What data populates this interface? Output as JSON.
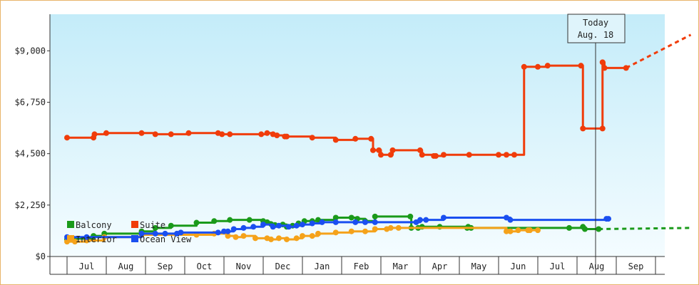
{
  "chart_data": {
    "type": "line",
    "title": "",
    "xlabel": "",
    "ylabel": "",
    "x_tick_labels": [
      "Jul",
      "Aug",
      "Sep",
      "Oct",
      "Nov",
      "Dec",
      "Jan",
      "Feb",
      "Mar",
      "Apr",
      "May",
      "Jun",
      "Jul",
      "Aug",
      "Sep"
    ],
    "y_ticks": [
      0,
      2250,
      4500,
      6750,
      9000
    ],
    "y_tick_labels": [
      "$0",
      "$2,250",
      "$4,500",
      "$6,750",
      "$9,000"
    ],
    "ylim": [
      0,
      10600
    ],
    "grid": false,
    "legend": "inside-bottom-left",
    "today_marker": {
      "line1": "Today",
      "line2": "Aug. 18"
    },
    "series": [
      {
        "name": "Balcony",
        "color": "#1a9a1a",
        "points": [
          [
            0,
            750
          ],
          [
            0.3,
            780
          ],
          [
            1,
            780
          ],
          [
            1.35,
            900
          ],
          [
            1.9,
            1000
          ],
          [
            3.8,
            1100
          ],
          [
            4.5,
            1250
          ],
          [
            5.3,
            1350
          ],
          [
            6.6,
            1480
          ],
          [
            7.5,
            1550
          ],
          [
            8.3,
            1600
          ],
          [
            9.3,
            1600
          ],
          [
            10.0,
            1550
          ],
          [
            10.2,
            1500
          ],
          [
            10.4,
            1420
          ],
          [
            10.6,
            1380
          ],
          [
            11.0,
            1400
          ],
          [
            11.2,
            1300
          ],
          [
            11.5,
            1350
          ],
          [
            11.8,
            1450
          ],
          [
            12.1,
            1550
          ],
          [
            12.5,
            1550
          ],
          [
            12.8,
            1600
          ],
          [
            13.7,
            1700
          ],
          [
            14.5,
            1700
          ],
          [
            14.8,
            1650
          ],
          [
            15.2,
            1550
          ],
          [
            15.7,
            1750
          ],
          [
            17.5,
            1750
          ],
          [
            17.55,
            1250
          ],
          [
            17.9,
            1250
          ],
          [
            18.1,
            1300
          ],
          [
            19.0,
            1300
          ],
          [
            20.4,
            1250
          ],
          [
            20.45,
            1300
          ],
          [
            20.6,
            1250
          ],
          [
            25.6,
            1250
          ],
          [
            26.3,
            1300
          ],
          [
            26.4,
            1200
          ],
          [
            27.1,
            1200
          ]
        ],
        "forecast": [
          [
            27.1,
            1200
          ],
          [
            31.8,
            1250
          ]
        ]
      },
      {
        "name": "Suite",
        "color": "#f03c0a",
        "points": [
          [
            0,
            5200
          ],
          [
            1.35,
            5200
          ],
          [
            1.4,
            5350
          ],
          [
            2.0,
            5400
          ],
          [
            3.8,
            5400
          ],
          [
            4.5,
            5350
          ],
          [
            5.3,
            5350
          ],
          [
            6.2,
            5400
          ],
          [
            7.7,
            5400
          ],
          [
            7.9,
            5350
          ],
          [
            8.3,
            5350
          ],
          [
            9.9,
            5350
          ],
          [
            10.2,
            5400
          ],
          [
            10.5,
            5350
          ],
          [
            10.7,
            5300
          ],
          [
            11.1,
            5250
          ],
          [
            11.2,
            5250
          ],
          [
            12.5,
            5200
          ],
          [
            13.7,
            5100
          ],
          [
            14.7,
            5150
          ],
          [
            15.5,
            5150
          ],
          [
            15.6,
            4650
          ],
          [
            15.9,
            4650
          ],
          [
            16.0,
            4450
          ],
          [
            16.5,
            4450
          ],
          [
            16.6,
            4650
          ],
          [
            18.0,
            4650
          ],
          [
            18.1,
            4450
          ],
          [
            18.7,
            4400
          ],
          [
            18.8,
            4400
          ],
          [
            19.2,
            4450
          ],
          [
            20.5,
            4450
          ],
          [
            22.0,
            4450
          ],
          [
            22.4,
            4450
          ],
          [
            22.8,
            4450
          ],
          [
            23.3,
            8300
          ],
          [
            24.0,
            8300
          ],
          [
            24.5,
            8350
          ],
          [
            26.2,
            8350
          ],
          [
            26.3,
            5600
          ],
          [
            27.3,
            5600
          ],
          [
            27.3,
            8500
          ],
          [
            27.4,
            8250
          ],
          [
            28.5,
            8250
          ]
        ],
        "forecast": [
          [
            28.5,
            8250
          ],
          [
            31.8,
            9700
          ]
        ]
      },
      {
        "name": "Interior",
        "color": "#f5a21a",
        "points": [
          [
            0,
            650
          ],
          [
            0.4,
            650
          ],
          [
            1.0,
            700
          ],
          [
            1.9,
            850
          ],
          [
            3.8,
            950
          ],
          [
            6.6,
            950
          ],
          [
            7.5,
            1000
          ],
          [
            8.2,
            900
          ],
          [
            8.6,
            850
          ],
          [
            9.0,
            900
          ],
          [
            9.6,
            800
          ],
          [
            10.2,
            800
          ],
          [
            10.4,
            750
          ],
          [
            10.8,
            800
          ],
          [
            11.2,
            750
          ],
          [
            11.7,
            800
          ],
          [
            12.0,
            900
          ],
          [
            12.5,
            900
          ],
          [
            12.8,
            1000
          ],
          [
            13.7,
            1050
          ],
          [
            14.5,
            1100
          ],
          [
            15.2,
            1100
          ],
          [
            15.7,
            1200
          ],
          [
            16.3,
            1200
          ],
          [
            16.5,
            1250
          ],
          [
            16.9,
            1250
          ],
          [
            22.4,
            1100
          ],
          [
            22.6,
            1100
          ],
          [
            23.0,
            1150
          ],
          [
            23.5,
            1150
          ],
          [
            23.6,
            1150
          ],
          [
            24.0,
            1150
          ]
        ],
        "forecast": []
      },
      {
        "name": "Ocean View",
        "color": "#1a4ff0",
        "points": [
          [
            0,
            850
          ],
          [
            1.0,
            850
          ],
          [
            3.8,
            1000
          ],
          [
            4.5,
            1000
          ],
          [
            5.0,
            1000
          ],
          [
            5.6,
            1000
          ],
          [
            5.8,
            1050
          ],
          [
            7.7,
            1050
          ],
          [
            8.0,
            1100
          ],
          [
            8.2,
            1100
          ],
          [
            8.5,
            1200
          ],
          [
            9.0,
            1250
          ],
          [
            9.5,
            1300
          ],
          [
            10.0,
            1400
          ],
          [
            10.5,
            1300
          ],
          [
            10.8,
            1350
          ],
          [
            11.3,
            1300
          ],
          [
            11.7,
            1350
          ],
          [
            12.0,
            1400
          ],
          [
            12.5,
            1450
          ],
          [
            13.0,
            1500
          ],
          [
            13.7,
            1500
          ],
          [
            14.7,
            1500
          ],
          [
            15.2,
            1500
          ],
          [
            15.7,
            1500
          ],
          [
            17.8,
            1500
          ],
          [
            18.0,
            1600
          ],
          [
            18.3,
            1600
          ],
          [
            19.2,
            1700
          ],
          [
            22.4,
            1700
          ],
          [
            22.6,
            1600
          ],
          [
            27.5,
            1650
          ],
          [
            27.6,
            1650
          ]
        ],
        "forecast": []
      }
    ]
  }
}
